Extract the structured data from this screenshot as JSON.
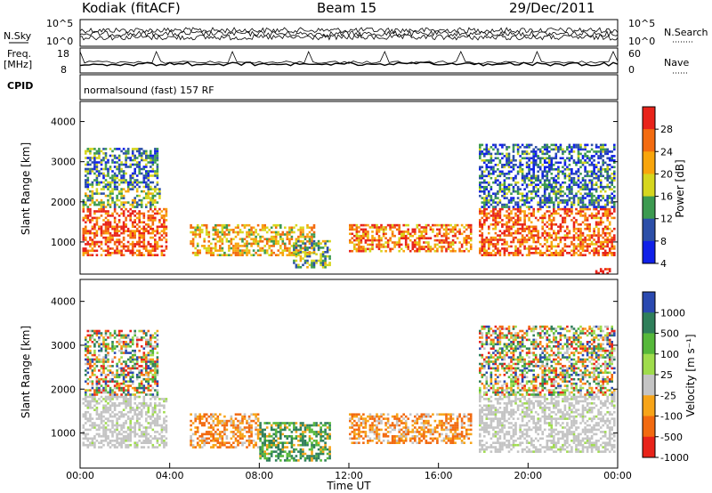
{
  "header": {
    "station": "Kodiak (fitACF)",
    "beam": "Beam 15",
    "date": "29/Dec/2011"
  },
  "top_panel": {
    "left_label": "N.Sky",
    "right_label": "N.Search",
    "left_ticks": [
      "10^5",
      "10^0"
    ],
    "right_ticks": [
      "10^5",
      "10^0"
    ]
  },
  "freq_panel": {
    "left_label_1": "Freq.",
    "left_label_2": "[MHz]",
    "right_label": "Nave",
    "left_ticks": [
      "18",
      "8"
    ],
    "right_ticks": [
      "60",
      "0"
    ]
  },
  "cpid_panel": {
    "label": "CPID",
    "text": "normalsound (fast) 157 RF"
  },
  "power_scale": {
    "label": "Power [dB]",
    "ticks": [
      "28",
      "24",
      "20",
      "16",
      "12",
      "8",
      "4"
    ],
    "colors": [
      "#e8231a",
      "#f36b10",
      "#f8a50c",
      "#d6d61e",
      "#3c9a50",
      "#2c4fa8",
      "#1020e8"
    ]
  },
  "velocity_scale": {
    "label": "Velocity [m s⁻¹]",
    "ticks": [
      "1000",
      "500",
      "100",
      "25",
      "-25",
      "-100",
      "-500",
      "-1000"
    ],
    "colors": [
      "#2a49b0",
      "#2f7f5a",
      "#56b83a",
      "#9fdc4c",
      "#c4c4c4",
      "#f7a418",
      "#f26a10",
      "#e8231a"
    ]
  },
  "chart_data": [
    {
      "type": "heatmap",
      "name": "power",
      "ylabel": "Slant Range [km]",
      "yticks": [
        "1000",
        "2000",
        "3000",
        "4000"
      ],
      "ylim": [
        200,
        4500
      ],
      "xlim": [
        0,
        24
      ],
      "scatter_regions": [
        {
          "t0": 0.1,
          "t1": 3.9,
          "r0": 700,
          "r1": 1900,
          "level": 0.85
        },
        {
          "t0": 0.1,
          "t1": 3.6,
          "r0": 1900,
          "r1": 2400,
          "level": 0.45
        },
        {
          "t0": 0.2,
          "t1": 3.5,
          "r0": 2400,
          "r1": 3400,
          "level": 0.3
        },
        {
          "t0": 4.9,
          "t1": 10.5,
          "r0": 700,
          "r1": 1500,
          "level": 0.6
        },
        {
          "t0": 9.5,
          "t1": 11.2,
          "r0": 400,
          "r1": 1100,
          "level": 0.4
        },
        {
          "t0": 12.0,
          "t1": 17.5,
          "r0": 800,
          "r1": 1500,
          "level": 0.75
        },
        {
          "t0": 17.8,
          "t1": 23.9,
          "r0": 700,
          "r1": 1900,
          "level": 0.8
        },
        {
          "t0": 17.8,
          "t1": 23.9,
          "r0": 1900,
          "r1": 3500,
          "level": 0.25
        },
        {
          "t0": 23.0,
          "t1": 23.8,
          "r0": 250,
          "r1": 400,
          "level": 0.95
        }
      ]
    },
    {
      "type": "heatmap",
      "name": "velocity",
      "xlabel": "Time UT",
      "ylabel": "Slant Range [km]",
      "xticks": [
        "00:00",
        "04:00",
        "08:00",
        "12:00",
        "16:00",
        "20:00",
        "00:00"
      ],
      "yticks": [
        "1000",
        "2000",
        "3000",
        "4000"
      ],
      "ylim": [
        200,
        4500
      ],
      "xlim": [
        0,
        24
      ],
      "scatter_regions": [
        {
          "t0": 0.1,
          "t1": 3.9,
          "r0": 700,
          "r1": 1900,
          "vel": "ground"
        },
        {
          "t0": 0.2,
          "t1": 3.5,
          "r0": 1900,
          "r1": 3400,
          "vel": "mixed"
        },
        {
          "t0": 4.9,
          "t1": 8.0,
          "r0": 700,
          "r1": 1500,
          "vel": "neg"
        },
        {
          "t0": 8.0,
          "t1": 11.2,
          "r0": 400,
          "r1": 1300,
          "vel": "pos"
        },
        {
          "t0": 12.0,
          "t1": 17.5,
          "r0": 800,
          "r1": 1500,
          "vel": "neg"
        },
        {
          "t0": 17.8,
          "t1": 23.9,
          "r0": 600,
          "r1": 1900,
          "vel": "ground"
        },
        {
          "t0": 17.8,
          "t1": 23.9,
          "r0": 1900,
          "r1": 3500,
          "vel": "mixed"
        }
      ]
    }
  ]
}
